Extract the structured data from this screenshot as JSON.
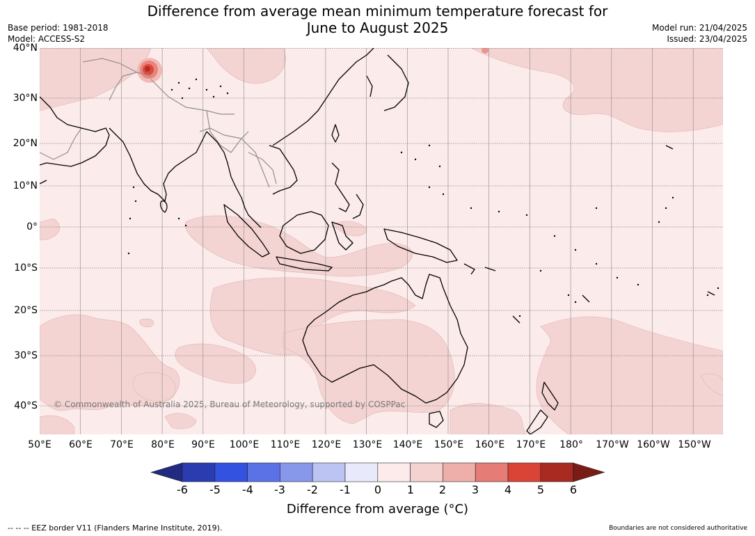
{
  "title_line1": "Difference from average mean minimum temperature forecast for",
  "title_line2": "June to August 2025",
  "base_period": "Base period: 1981-2018",
  "model": "Model: ACCESS-S2",
  "model_run": "Model run: 21/04/2025",
  "issued": "Issued: 23/04/2025",
  "lat_labels": [
    "40°N",
    "30°N",
    "20°N",
    "10°N",
    "0°",
    "10°S",
    "20°S",
    "30°S",
    "40°S"
  ],
  "lon_labels": [
    "50°E",
    "60°E",
    "70°E",
    "80°E",
    "90°E",
    "100°E",
    "110°E",
    "120°E",
    "130°E",
    "140°E",
    "150°E",
    "160°E",
    "170°E",
    "180°",
    "170°W",
    "160°W",
    "150°W"
  ],
  "copyright": "© Commonwealth of Australia 2025, Bureau of Meteorology, supported by COSPPac",
  "colorbar": {
    "ticks": [
      "-6",
      "-5",
      "-4",
      "-3",
      "-2",
      "-1",
      "0",
      "1",
      "2",
      "3",
      "4",
      "5",
      "6"
    ],
    "colors": [
      "#1f2a80",
      "#2a3cb0",
      "#3352e0",
      "#5b72e6",
      "#8797ea",
      "#bcc4f3",
      "#e8eafb",
      "#fcebea",
      "#f4d2d0",
      "#eeaeaa",
      "#e57c76",
      "#d94436",
      "#a82a20",
      "#7a1c16"
    ],
    "label": "Difference from average (°C)"
  },
  "eez_note": "--  --  -- EEZ border V11 (Flanders Marine Institute, 2019).",
  "boundaries_note": "Boundaries are not considered authoritative"
}
